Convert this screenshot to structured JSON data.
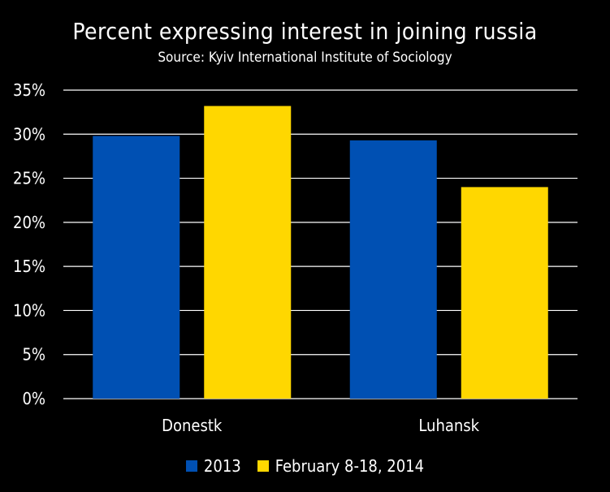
{
  "chart_data": {
    "type": "bar",
    "title": "Percent expressing interest in joining russia",
    "subtitle": "Source: Kyiv International  Institute  of Sociology",
    "categories": [
      "Donestk",
      "Luhansk"
    ],
    "series": [
      {
        "name": "2013",
        "values": [
          29.8,
          29.3
        ],
        "color": "#0050B3"
      },
      {
        "name": "February 8-18, 2014",
        "values": [
          33.2,
          24.0
        ],
        "color": "#FFD700"
      }
    ],
    "yticks": [
      "0%",
      "5%",
      "10%",
      "15%",
      "20%",
      "25%",
      "30%",
      "35%"
    ],
    "ylim": [
      0,
      35
    ],
    "grid": true,
    "legend": "bottom"
  }
}
